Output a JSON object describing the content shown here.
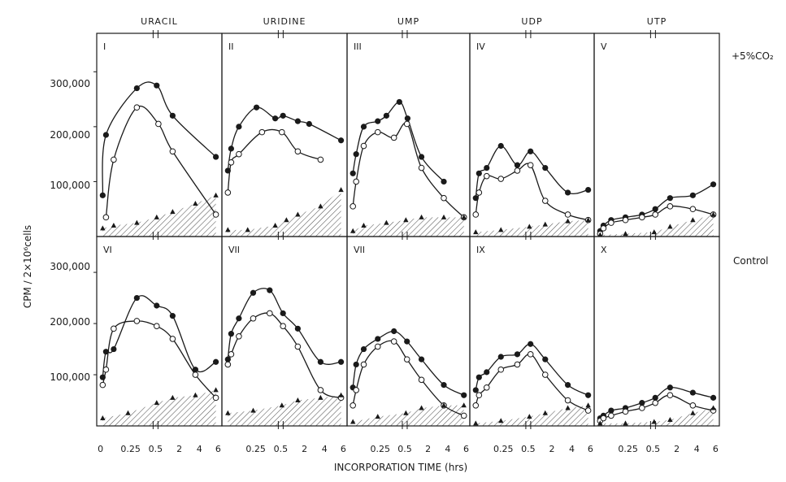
{
  "figure": {
    "ylabel": "CPM / 2×10⁶cells",
    "xlabel": "INCORPORATION  TIME  (hrs)",
    "row_labels": [
      "+5%CO₂",
      "Control"
    ],
    "column_titles": [
      "URACIL",
      "URIDINE",
      "UMP",
      "UDP",
      "UTP"
    ],
    "x_tick_labels": [
      [
        "0",
        "0.25",
        "0.5",
        "2",
        "4",
        "6"
      ],
      [
        "0.25",
        "0.5",
        "2",
        "4",
        "6"
      ],
      [
        "0.25",
        "0.5",
        "2",
        "4",
        "6"
      ],
      [
        "0.25",
        "0.5",
        "2",
        "4",
        "6"
      ],
      [
        "0.25",
        "0.5",
        "2",
        "4",
        "6"
      ]
    ],
    "y_tick_labels": [
      "300,000",
      "200,000",
      "100,000"
    ],
    "colors": {
      "ink": "#1a1a1a",
      "background": "#ffffff",
      "hatch": "#555555"
    }
  },
  "chart_data": [
    {
      "type": "line",
      "panel": "I",
      "compound": "URACIL",
      "condition": "+5%CO₂",
      "ylim": [
        0,
        370000
      ],
      "series": [
        {
          "marker": "filled-circle",
          "x": [
            0.02,
            0.05,
            0.33,
            0.6,
            2,
            5.8
          ],
          "values": [
            75000,
            185000,
            270000,
            275000,
            220000,
            145000
          ]
        },
        {
          "marker": "open-circle",
          "x": [
            0.05,
            0.12,
            0.33,
            0.75,
            2,
            5.8
          ],
          "values": [
            35000,
            140000,
            235000,
            205000,
            155000,
            40000
          ]
        },
        {
          "marker": "triangle",
          "x": [
            0.02,
            0.12,
            0.33,
            0.6,
            2,
            4,
            5.8
          ],
          "values": [
            15000,
            20000,
            25000,
            35000,
            45000,
            60000,
            75000
          ]
        }
      ]
    },
    {
      "type": "line",
      "panel": "II",
      "compound": "URIDINE",
      "condition": "+5%CO₂",
      "ylim": [
        0,
        370000
      ],
      "series": [
        {
          "marker": "filled-circle",
          "x": [
            0.02,
            0.05,
            0.12,
            0.28,
            0.45,
            0.7,
            2,
            3,
            5.8
          ],
          "values": [
            120000,
            160000,
            200000,
            235000,
            215000,
            220000,
            210000,
            205000,
            175000
          ]
        },
        {
          "marker": "open-circle",
          "x": [
            0.02,
            0.05,
            0.12,
            0.33,
            0.6,
            2,
            4
          ],
          "values": [
            80000,
            135000,
            150000,
            190000,
            190000,
            155000,
            140000
          ]
        },
        {
          "marker": "triangle",
          "x": [
            0.02,
            0.2,
            0.45,
            1,
            2,
            4,
            5.8
          ],
          "values": [
            12000,
            12000,
            20000,
            30000,
            40000,
            55000,
            85000
          ]
        }
      ]
    },
    {
      "type": "line",
      "panel": "III",
      "compound": "UMP",
      "condition": "+5%CO₂",
      "ylim": [
        0,
        370000
      ],
      "series": [
        {
          "marker": "filled-circle",
          "x": [
            0.02,
            0.05,
            0.12,
            0.25,
            0.33,
            0.45,
            0.75,
            2,
            4
          ],
          "values": [
            115000,
            150000,
            200000,
            210000,
            220000,
            245000,
            215000,
            145000,
            100000
          ]
        },
        {
          "marker": "open-circle",
          "x": [
            0.02,
            0.05,
            0.12,
            0.25,
            0.4,
            0.7,
            2,
            4,
            5.8
          ],
          "values": [
            55000,
            100000,
            165000,
            190000,
            180000,
            205000,
            125000,
            70000,
            35000
          ]
        },
        {
          "marker": "triangle",
          "x": [
            0.02,
            0.12,
            0.33,
            0.6,
            2,
            4,
            5.8
          ],
          "values": [
            10000,
            20000,
            25000,
            30000,
            35000,
            35000,
            35000
          ]
        }
      ]
    },
    {
      "type": "line",
      "panel": "IV",
      "compound": "UDP",
      "condition": "+5%CO₂",
      "ylim": [
        0,
        370000
      ],
      "series": [
        {
          "marker": "filled-circle",
          "x": [
            0.02,
            0.05,
            0.12,
            0.25,
            0.4,
            0.7,
            2,
            4,
            5.8
          ],
          "values": [
            70000,
            115000,
            125000,
            165000,
            130000,
            155000,
            125000,
            80000,
            85000
          ]
        },
        {
          "marker": "open-circle",
          "x": [
            0.02,
            0.05,
            0.12,
            0.25,
            0.4,
            0.7,
            2,
            4,
            5.8
          ],
          "values": [
            40000,
            80000,
            110000,
            105000,
            120000,
            130000,
            65000,
            40000,
            30000
          ]
        },
        {
          "marker": "triangle",
          "x": [
            0.02,
            0.25,
            0.6,
            2,
            4,
            5.8
          ],
          "values": [
            8000,
            12000,
            18000,
            22000,
            28000,
            30000
          ]
        }
      ]
    },
    {
      "type": "line",
      "panel": "V",
      "compound": "UTP",
      "condition": "+5%CO₂",
      "ylim": [
        0,
        370000
      ],
      "series": [
        {
          "marker": "filled-circle",
          "x": [
            0.02,
            0.05,
            0.12,
            0.25,
            0.4,
            0.7,
            2,
            4,
            5.8
          ],
          "values": [
            10000,
            20000,
            30000,
            35000,
            40000,
            50000,
            70000,
            75000,
            95000
          ]
        },
        {
          "marker": "open-circle",
          "x": [
            0.02,
            0.05,
            0.12,
            0.25,
            0.4,
            0.7,
            2,
            4,
            5.8
          ],
          "values": [
            5000,
            15000,
            25000,
            30000,
            35000,
            40000,
            55000,
            50000,
            40000
          ]
        },
        {
          "marker": "triangle",
          "x": [
            0.02,
            0.25,
            0.6,
            2,
            4,
            5.8
          ],
          "values": [
            3000,
            5000,
            8000,
            18000,
            30000,
            40000
          ]
        }
      ]
    },
    {
      "type": "line",
      "panel": "VI",
      "compound": "URACIL",
      "condition": "Control",
      "ylim": [
        0,
        370000
      ],
      "series": [
        {
          "marker": "filled-circle",
          "x": [
            0.02,
            0.05,
            0.12,
            0.33,
            0.6,
            2,
            4,
            5.8
          ],
          "values": [
            95000,
            145000,
            150000,
            250000,
            235000,
            215000,
            110000,
            125000
          ]
        },
        {
          "marker": "open-circle",
          "x": [
            0.02,
            0.05,
            0.12,
            0.33,
            0.6,
            2,
            4,
            5.8
          ],
          "values": [
            80000,
            110000,
            190000,
            205000,
            195000,
            170000,
            100000,
            55000
          ]
        },
        {
          "marker": "triangle",
          "x": [
            0.02,
            0.25,
            0.6,
            2,
            4,
            5.8
          ],
          "values": [
            15000,
            25000,
            45000,
            55000,
            60000,
            70000
          ]
        }
      ]
    },
    {
      "type": "line",
      "panel": "VII",
      "compound": "URIDINE",
      "condition": "Control",
      "ylim": [
        0,
        370000
      ],
      "series": [
        {
          "marker": "filled-circle",
          "x": [
            0.02,
            0.05,
            0.12,
            0.25,
            0.4,
            0.7,
            2,
            4,
            5.8
          ],
          "values": [
            130000,
            180000,
            210000,
            260000,
            265000,
            220000,
            190000,
            125000,
            125000
          ]
        },
        {
          "marker": "open-circle",
          "x": [
            0.02,
            0.05,
            0.12,
            0.25,
            0.4,
            0.7,
            2,
            4,
            5.8
          ],
          "values": [
            120000,
            140000,
            175000,
            210000,
            220000,
            195000,
            155000,
            70000,
            55000
          ]
        },
        {
          "marker": "triangle",
          "x": [
            0.02,
            0.25,
            0.6,
            2,
            4,
            5.8
          ],
          "values": [
            25000,
            30000,
            40000,
            50000,
            55000,
            60000
          ]
        }
      ]
    },
    {
      "type": "line",
      "panel": "VII",
      "compound": "UMP",
      "condition": "Control",
      "ylim": [
        0,
        370000
      ],
      "series": [
        {
          "marker": "filled-circle",
          "x": [
            0.02,
            0.05,
            0.12,
            0.25,
            0.4,
            0.7,
            2,
            4,
            5.8
          ],
          "values": [
            75000,
            120000,
            150000,
            170000,
            185000,
            165000,
            130000,
            80000,
            60000
          ]
        },
        {
          "marker": "open-circle",
          "x": [
            0.02,
            0.05,
            0.12,
            0.25,
            0.4,
            0.7,
            2,
            4,
            5.8
          ],
          "values": [
            40000,
            70000,
            120000,
            155000,
            165000,
            130000,
            90000,
            40000,
            20000
          ]
        },
        {
          "marker": "triangle",
          "x": [
            0.02,
            0.25,
            0.6,
            2,
            4,
            5.8
          ],
          "values": [
            8000,
            18000,
            25000,
            35000,
            40000,
            40000
          ]
        }
      ]
    },
    {
      "type": "line",
      "panel": "IX",
      "compound": "UDP",
      "condition": "Control",
      "ylim": [
        0,
        370000
      ],
      "series": [
        {
          "marker": "filled-circle",
          "x": [
            0.02,
            0.05,
            0.12,
            0.25,
            0.4,
            0.7,
            2,
            4,
            5.8
          ],
          "values": [
            70000,
            95000,
            105000,
            135000,
            140000,
            160000,
            130000,
            80000,
            60000
          ]
        },
        {
          "marker": "open-circle",
          "x": [
            0.02,
            0.05,
            0.12,
            0.25,
            0.4,
            0.7,
            2,
            4,
            5.8
          ],
          "values": [
            40000,
            60000,
            75000,
            110000,
            120000,
            140000,
            100000,
            50000,
            30000
          ]
        },
        {
          "marker": "triangle",
          "x": [
            0.02,
            0.25,
            0.6,
            2,
            4,
            5.8
          ],
          "values": [
            5000,
            10000,
            18000,
            25000,
            35000,
            40000
          ]
        }
      ]
    },
    {
      "type": "line",
      "panel": "X",
      "compound": "UTP",
      "condition": "Control",
      "ylim": [
        0,
        370000
      ],
      "series": [
        {
          "marker": "filled-circle",
          "x": [
            0.02,
            0.05,
            0.12,
            0.25,
            0.4,
            0.7,
            2,
            4,
            5.8
          ],
          "values": [
            15000,
            20000,
            30000,
            35000,
            45000,
            55000,
            75000,
            65000,
            55000
          ]
        },
        {
          "marker": "open-circle",
          "x": [
            0.02,
            0.05,
            0.12,
            0.25,
            0.4,
            0.7,
            2,
            4,
            5.8
          ],
          "values": [
            10000,
            15000,
            20000,
            28000,
            35000,
            45000,
            60000,
            40000,
            30000
          ]
        },
        {
          "marker": "triangle",
          "x": [
            0.02,
            0.25,
            0.6,
            2,
            4,
            5.8
          ],
          "values": [
            5000,
            5000,
            8000,
            12000,
            25000,
            35000
          ]
        }
      ]
    }
  ]
}
